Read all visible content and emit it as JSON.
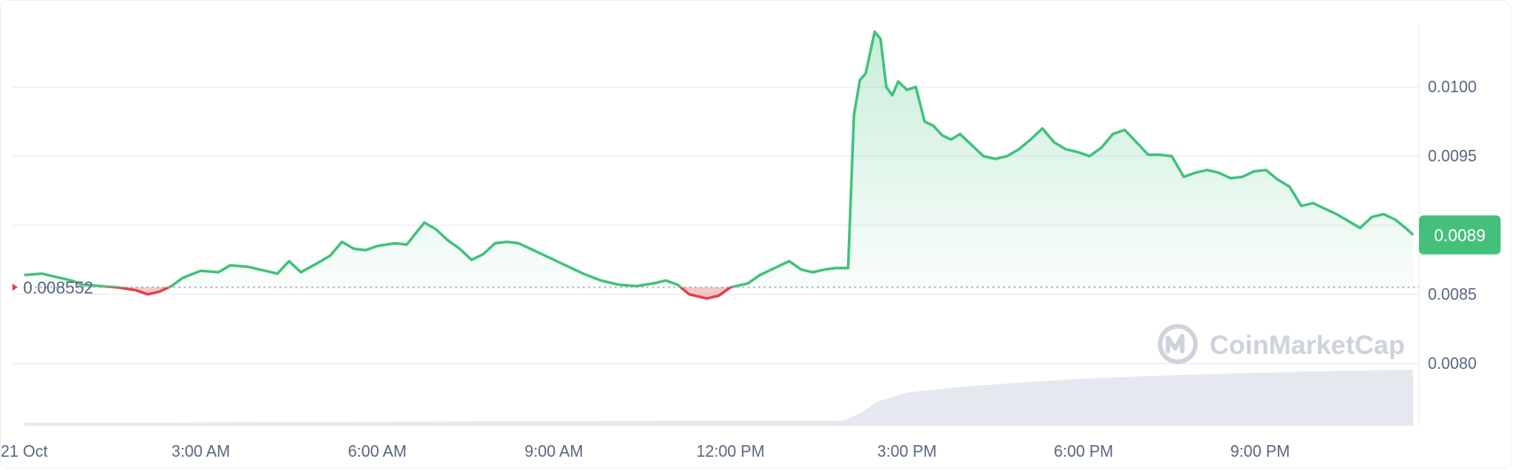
{
  "watermark": {
    "text": "CoinMarketCap",
    "icon": "coinmarketcap-logo-icon"
  },
  "colors": {
    "up": "#3fc27a",
    "down": "#e23f4a",
    "grid": "#eef0f3",
    "axis_text": "#58667e",
    "volume": "#e5e8ee",
    "current_badge": "#45c07b"
  },
  "chart_data": {
    "type": "area",
    "title": "",
    "xlabel": "",
    "ylabel": "",
    "x_ticks": [
      "21 Oct",
      "3:00 AM",
      "6:00 AM",
      "9:00 AM",
      "12:00 PM",
      "3:00 PM",
      "6:00 PM",
      "9:00 PM"
    ],
    "y_ticks": [
      "0.0080",
      "0.0085",
      "0.0090",
      "0.0095",
      "0.0100"
    ],
    "ylim": [
      0.00755,
      0.01045
    ],
    "x_range_hours": [
      -0.2,
      23.7
    ],
    "grid": true,
    "reference_price": 0.008552,
    "reference_label": "0.008552",
    "current_price_label": "0.0089",
    "series": [
      {
        "values": [
          [
            0.0,
            0.00864
          ],
          [
            0.3,
            0.00865
          ],
          [
            0.5,
            0.00863
          ],
          [
            0.8,
            0.0086
          ],
          [
            1.0,
            0.00857
          ],
          [
            1.3,
            0.00856
          ],
          [
            1.6,
            0.00855
          ],
          [
            1.9,
            0.00853
          ],
          [
            2.1,
            0.0085
          ],
          [
            2.3,
            0.00852
          ],
          [
            2.5,
            0.00856
          ],
          [
            2.7,
            0.00862
          ],
          [
            3.0,
            0.00867
          ],
          [
            3.3,
            0.00866
          ],
          [
            3.5,
            0.00871
          ],
          [
            3.8,
            0.0087
          ],
          [
            4.1,
            0.00867
          ],
          [
            4.3,
            0.00865
          ],
          [
            4.5,
            0.00874
          ],
          [
            4.7,
            0.00866
          ],
          [
            5.0,
            0.00873
          ],
          [
            5.2,
            0.00878
          ],
          [
            5.4,
            0.00888
          ],
          [
            5.6,
            0.00883
          ],
          [
            5.8,
            0.00882
          ],
          [
            6.0,
            0.00885
          ],
          [
            6.3,
            0.00887
          ],
          [
            6.5,
            0.00886
          ],
          [
            6.8,
            0.00902
          ],
          [
            7.0,
            0.00897
          ],
          [
            7.2,
            0.00889
          ],
          [
            7.4,
            0.00883
          ],
          [
            7.6,
            0.00875
          ],
          [
            7.8,
            0.00879
          ],
          [
            8.0,
            0.00887
          ],
          [
            8.2,
            0.00888
          ],
          [
            8.4,
            0.00887
          ],
          [
            8.6,
            0.00883
          ],
          [
            8.9,
            0.00877
          ],
          [
            9.2,
            0.00871
          ],
          [
            9.5,
            0.00865
          ],
          [
            9.8,
            0.0086
          ],
          [
            10.1,
            0.00857
          ],
          [
            10.4,
            0.00856
          ],
          [
            10.7,
            0.00858
          ],
          [
            10.9,
            0.0086
          ],
          [
            11.1,
            0.00857
          ],
          [
            11.3,
            0.0085
          ],
          [
            11.6,
            0.00847
          ],
          [
            11.8,
            0.00849
          ],
          [
            12.0,
            0.00855
          ],
          [
            12.3,
            0.00858
          ],
          [
            12.5,
            0.00864
          ],
          [
            12.7,
            0.00868
          ],
          [
            13.0,
            0.00874
          ],
          [
            13.2,
            0.00868
          ],
          [
            13.4,
            0.00866
          ],
          [
            13.6,
            0.00868
          ],
          [
            13.8,
            0.00869
          ],
          [
            14.0,
            0.00869
          ],
          [
            14.1,
            0.0098
          ],
          [
            14.2,
            0.01005
          ],
          [
            14.3,
            0.0101
          ],
          [
            14.45,
            0.0104
          ],
          [
            14.55,
            0.01035
          ],
          [
            14.65,
            0.01
          ],
          [
            14.75,
            0.00994
          ],
          [
            14.85,
            0.01004
          ],
          [
            15.0,
            0.00998
          ],
          [
            15.15,
            0.01
          ],
          [
            15.3,
            0.00975
          ],
          [
            15.45,
            0.00972
          ],
          [
            15.6,
            0.00965
          ],
          [
            15.75,
            0.00962
          ],
          [
            15.9,
            0.00966
          ],
          [
            16.1,
            0.00958
          ],
          [
            16.3,
            0.0095
          ],
          [
            16.5,
            0.00948
          ],
          [
            16.7,
            0.0095
          ],
          [
            16.9,
            0.00955
          ],
          [
            17.1,
            0.00962
          ],
          [
            17.3,
            0.0097
          ],
          [
            17.5,
            0.0096
          ],
          [
            17.7,
            0.00955
          ],
          [
            17.9,
            0.00953
          ],
          [
            18.1,
            0.0095
          ],
          [
            18.3,
            0.00956
          ],
          [
            18.5,
            0.00966
          ],
          [
            18.7,
            0.00969
          ],
          [
            18.9,
            0.0096
          ],
          [
            19.1,
            0.00951
          ],
          [
            19.3,
            0.00951
          ],
          [
            19.5,
            0.0095
          ],
          [
            19.7,
            0.00935
          ],
          [
            19.9,
            0.00938
          ],
          [
            20.1,
            0.0094
          ],
          [
            20.3,
            0.00938
          ],
          [
            20.5,
            0.00934
          ],
          [
            20.7,
            0.00935
          ],
          [
            20.9,
            0.00939
          ],
          [
            21.1,
            0.0094
          ],
          [
            21.3,
            0.00933
          ],
          [
            21.5,
            0.00928
          ],
          [
            21.7,
            0.00914
          ],
          [
            21.9,
            0.00916
          ],
          [
            22.1,
            0.00912
          ],
          [
            22.3,
            0.00908
          ],
          [
            22.5,
            0.00903
          ],
          [
            22.7,
            0.00898
          ],
          [
            22.9,
            0.00906
          ],
          [
            23.1,
            0.00908
          ],
          [
            23.3,
            0.00904
          ],
          [
            23.5,
            0.00897
          ],
          [
            23.6,
            0.00893
          ]
        ]
      }
    ],
    "volume": [
      [
        0.0,
        0.05
      ],
      [
        2.0,
        0.05
      ],
      [
        5.0,
        0.06
      ],
      [
        8.0,
        0.07
      ],
      [
        11.0,
        0.08
      ],
      [
        13.9,
        0.08
      ],
      [
        14.2,
        0.2
      ],
      [
        14.5,
        0.4
      ],
      [
        15.0,
        0.55
      ],
      [
        16.0,
        0.65
      ],
      [
        17.0,
        0.72
      ],
      [
        18.0,
        0.78
      ],
      [
        19.0,
        0.82
      ],
      [
        20.0,
        0.85
      ],
      [
        21.0,
        0.88
      ],
      [
        22.0,
        0.9
      ],
      [
        23.0,
        0.92
      ],
      [
        23.6,
        0.93
      ]
    ]
  }
}
